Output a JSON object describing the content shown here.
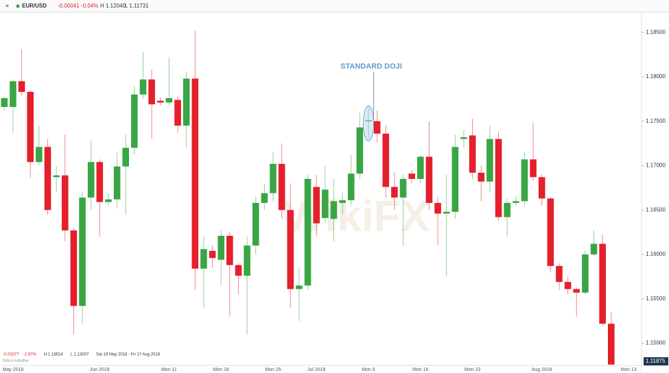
{
  "chart_data": {
    "type": "candlestick",
    "title": "EUR/USD",
    "header": {
      "change": "-0.00041",
      "change_pct": "-0.04%",
      "high": "H 1.12040",
      "low": "L 1.11731"
    },
    "footer": {
      "change": "-0.03377",
      "change_pct": "-2.87%",
      "high": "H 1.18524",
      "low": "L 1.13007",
      "range": "Sat 19 May 2018 - Fri 17 Aug 2018",
      "note": "Data is indicative"
    },
    "annotation": "STANDARD DOJI",
    "watermark": "WikiFX",
    "last_price_label": "1.11875",
    "up_color": "#3aa545",
    "down_color": "#e3202c",
    "categories": [
      null,
      "May 2018",
      null,
      null,
      null,
      null,
      null,
      null,
      null,
      null,
      null,
      "Jun 2018",
      null,
      null,
      null,
      null,
      null,
      null,
      null,
      "Mon 11",
      null,
      null,
      null,
      null,
      null,
      "Mon 18",
      null,
      null,
      null,
      null,
      null,
      "Mon 25",
      null,
      null,
      null,
      null,
      "Jul 2018",
      null,
      null,
      null,
      null,
      null,
      "Mon 9",
      null,
      null,
      null,
      null,
      null,
      "Mon 16",
      null,
      null,
      null,
      null,
      null,
      "Mon 23",
      null,
      null,
      null,
      null,
      null,
      null,
      null,
      "Aug 2018",
      null,
      null,
      null,
      null,
      null,
      null,
      null,
      null,
      null,
      "Mon 13",
      null
    ],
    "open": [
      1.1766,
      1.1766,
      1.1795,
      1.1783,
      1.1704,
      1.1721,
      1.1687,
      1.1689,
      1.1627,
      1.1542,
      1.1664,
      1.1704,
      1.1659,
      1.1662,
      1.1699,
      1.172,
      1.178,
      1.1797,
      1.1773,
      1.1771,
      1.1774,
      1.1745,
      1.1798,
      1.1584,
      1.1604,
      1.1594,
      1.1621,
      1.1588,
      1.1576,
      1.161,
      1.1658,
      1.1669,
      1.1702,
      1.165,
      1.1561,
      1.1565,
      1.1676,
      1.1641,
      1.164,
      1.1658,
      1.1661,
      1.1691,
      1.175,
      1.175,
      1.1736,
      1.1676,
      1.1664,
      1.1691,
      1.1685,
      1.171,
      1.1658,
      1.1646,
      1.1648,
      1.173,
      1.1734,
      1.1692,
      1.1682,
      1.173,
      1.1642,
      1.1658,
      1.166,
      1.1707,
      1.1687,
      1.1663,
      1.1587,
      1.1569,
      1.1561,
      1.1557,
      1.16,
      1.1612,
      1.1522,
      null,
      null,
      null
    ],
    "high": [
      1.1778,
      1.1797,
      1.1831,
      1.1785,
      1.1745,
      1.173,
      1.17,
      1.1735,
      1.163,
      1.167,
      1.1728,
      1.1707,
      1.1668,
      1.1715,
      1.1735,
      1.179,
      1.1828,
      1.1808,
      1.1777,
      1.1822,
      1.1778,
      1.1806,
      1.1852,
      1.162,
      1.161,
      1.1628,
      1.1626,
      1.159,
      1.162,
      1.1665,
      1.168,
      1.1715,
      1.1725,
      1.168,
      1.1585,
      1.169,
      1.169,
      1.17,
      1.1685,
      1.167,
      1.1712,
      1.176,
      1.1765,
      1.1762,
      1.1745,
      1.1693,
      1.169,
      1.1695,
      1.1712,
      1.175,
      1.1665,
      1.169,
      1.1735,
      1.174,
      1.1753,
      1.17,
      1.1745,
      1.1738,
      1.1663,
      1.1665,
      1.1715,
      1.1748,
      1.169,
      1.1665,
      1.159,
      1.1575,
      1.1563,
      1.1605,
      1.1627,
      1.1622,
      1.1535,
      null,
      null,
      null
    ],
    "low": [
      1.1762,
      1.1737,
      1.1779,
      1.1686,
      1.17,
      1.1645,
      1.167,
      1.1615,
      1.151,
      1.1522,
      1.165,
      1.162,
      1.1655,
      1.1652,
      1.1645,
      1.1712,
      1.1775,
      1.173,
      1.1768,
      1.1768,
      1.1737,
      1.172,
      1.156,
      1.154,
      1.1585,
      1.1565,
      1.153,
      1.1555,
      1.151,
      1.16,
      1.165,
      1.166,
      1.164,
      1.154,
      1.1525,
      1.156,
      1.162,
      1.1635,
      1.1615,
      1.1645,
      1.1655,
      1.1685,
      1.173,
      1.1726,
      1.1664,
      1.165,
      1.161,
      1.168,
      1.168,
      1.165,
      1.161,
      1.1575,
      1.164,
      1.172,
      1.1685,
      1.166,
      1.167,
      1.1638,
      1.162,
      1.1655,
      1.1655,
      1.1683,
      1.1655,
      1.158,
      1.156,
      1.1555,
      1.153,
      1.1555,
      1.1598,
      1.152,
      1.1476,
      null,
      null,
      null
    ],
    "close": [
      1.1776,
      1.1795,
      1.1783,
      1.1704,
      1.1721,
      1.165,
      1.1689,
      1.1627,
      1.1542,
      1.1664,
      1.1704,
      1.1659,
      1.1662,
      1.1699,
      1.172,
      1.178,
      1.1797,
      1.1769,
      1.1771,
      1.1776,
      1.1745,
      1.1798,
      1.1584,
      1.1606,
      1.1596,
      1.1621,
      1.1588,
      1.1576,
      1.161,
      1.1658,
      1.1669,
      1.1702,
      1.165,
      1.1561,
      1.1565,
      1.1685,
      1.1635,
      1.1673,
      1.166,
      1.1661,
      1.1691,
      1.1743,
      1.1751,
      1.1736,
      1.1676,
      1.1664,
      1.1685,
      1.1685,
      1.171,
      1.1658,
      1.1646,
      1.1648,
      1.1721,
      1.1732,
      1.1692,
      1.1682,
      1.173,
      1.1642,
      1.1658,
      1.166,
      1.1707,
      1.1687,
      1.1663,
      1.1587,
      1.1569,
      1.1561,
      1.1557,
      1.16,
      1.1612,
      1.1522,
      1.1476,
      null,
      null,
      null
    ],
    "ylim": [
      1.1475,
      1.1871
    ],
    "yticks": [
      {
        "value": 1.15,
        "label": "1.15000"
      },
      {
        "value": 1.155,
        "label": "1.15500"
      },
      {
        "value": 1.16,
        "label": "1.16000"
      },
      {
        "value": 1.165,
        "label": "1.16500"
      },
      {
        "value": 1.17,
        "label": "1.17000"
      },
      {
        "value": 1.175,
        "label": "1.17500"
      },
      {
        "value": 1.18,
        "label": "1.18000"
      },
      {
        "value": 1.185,
        "label": "1.18500"
      }
    ],
    "grid": false
  }
}
